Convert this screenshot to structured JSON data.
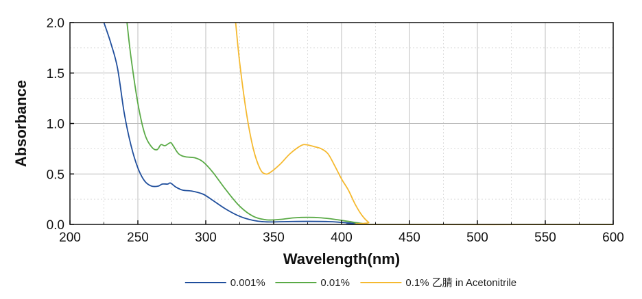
{
  "chart_data": {
    "type": "line",
    "title": "",
    "xlabel": "Wavelength(nm)",
    "ylabel": "Absorbance",
    "xlim": [
      200,
      600
    ],
    "ylim": [
      0,
      2.0
    ],
    "xticks": [
      200,
      250,
      300,
      350,
      400,
      450,
      500,
      550,
      600
    ],
    "xtick_labels": [
      "200",
      "250",
      "300",
      "350",
      "400",
      "450",
      "500",
      "550",
      "600"
    ],
    "yticks": [
      0,
      0.5,
      1.0,
      1.5,
      2.0
    ],
    "ytick_labels": [
      "0.0",
      "0.5",
      "1.0",
      "1.5",
      "2.0"
    ],
    "grid": true,
    "legend_position": "bottom",
    "series": [
      {
        "name": "0.001%",
        "color": "#1f4e9c",
        "points": [
          [
            225,
            2.0
          ],
          [
            230,
            1.8
          ],
          [
            235,
            1.55
          ],
          [
            240,
            1.1
          ],
          [
            245,
            0.78
          ],
          [
            250,
            0.56
          ],
          [
            255,
            0.43
          ],
          [
            260,
            0.38
          ],
          [
            265,
            0.38
          ],
          [
            268,
            0.4
          ],
          [
            272,
            0.4
          ],
          [
            274,
            0.41
          ],
          [
            278,
            0.37
          ],
          [
            283,
            0.34
          ],
          [
            290,
            0.33
          ],
          [
            298,
            0.3
          ],
          [
            305,
            0.24
          ],
          [
            315,
            0.15
          ],
          [
            325,
            0.08
          ],
          [
            335,
            0.04
          ],
          [
            345,
            0.025
          ],
          [
            360,
            0.028
          ],
          [
            375,
            0.03
          ],
          [
            390,
            0.028
          ],
          [
            400,
            0.02
          ],
          [
            410,
            0.01
          ],
          [
            420,
            0.0
          ],
          [
            600,
            0.0
          ]
        ]
      },
      {
        "name": "0.01%",
        "color": "#5aaa46",
        "points": [
          [
            242,
            2.0
          ],
          [
            245,
            1.65
          ],
          [
            250,
            1.2
          ],
          [
            255,
            0.9
          ],
          [
            260,
            0.77
          ],
          [
            264,
            0.74
          ],
          [
            267,
            0.79
          ],
          [
            270,
            0.78
          ],
          [
            274,
            0.81
          ],
          [
            276,
            0.78
          ],
          [
            280,
            0.7
          ],
          [
            285,
            0.67
          ],
          [
            292,
            0.66
          ],
          [
            298,
            0.62
          ],
          [
            305,
            0.52
          ],
          [
            315,
            0.34
          ],
          [
            325,
            0.18
          ],
          [
            335,
            0.08
          ],
          [
            345,
            0.045
          ],
          [
            355,
            0.05
          ],
          [
            365,
            0.065
          ],
          [
            375,
            0.07
          ],
          [
            385,
            0.065
          ],
          [
            395,
            0.05
          ],
          [
            405,
            0.03
          ],
          [
            415,
            0.01
          ],
          [
            425,
            0.0
          ],
          [
            600,
            0.0
          ]
        ]
      },
      {
        "name": "0.1% 乙腈 in Acetonitrile",
        "color": "#f5b92f",
        "points": [
          [
            322,
            2.0
          ],
          [
            325,
            1.6
          ],
          [
            330,
            1.1
          ],
          [
            335,
            0.75
          ],
          [
            340,
            0.55
          ],
          [
            344,
            0.5
          ],
          [
            348,
            0.52
          ],
          [
            355,
            0.6
          ],
          [
            362,
            0.7
          ],
          [
            370,
            0.78
          ],
          [
            374,
            0.79
          ],
          [
            380,
            0.77
          ],
          [
            385,
            0.75
          ],
          [
            390,
            0.7
          ],
          [
            395,
            0.58
          ],
          [
            400,
            0.45
          ],
          [
            405,
            0.34
          ],
          [
            410,
            0.2
          ],
          [
            415,
            0.09
          ],
          [
            420,
            0.02
          ],
          [
            424,
            0.0
          ],
          [
            600,
            0.0
          ]
        ]
      }
    ]
  }
}
